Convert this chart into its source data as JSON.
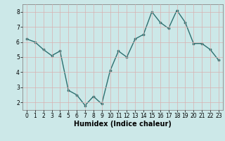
{
  "x": [
    0,
    1,
    2,
    3,
    4,
    5,
    6,
    7,
    8,
    9,
    10,
    11,
    12,
    13,
    14,
    15,
    16,
    17,
    18,
    19,
    20,
    21,
    22,
    23
  ],
  "y": [
    6.2,
    6.0,
    5.5,
    5.1,
    5.4,
    2.8,
    2.5,
    1.8,
    2.4,
    1.9,
    4.1,
    5.4,
    5.0,
    6.2,
    6.5,
    8.0,
    7.3,
    6.9,
    8.1,
    7.3,
    5.9,
    5.9,
    5.5,
    4.8
  ],
  "line_color": "#2d7070",
  "marker": "o",
  "marker_size": 2.2,
  "linewidth": 1.0,
  "xlabel": "Humidex (Indice chaleur)",
  "xlabel_fontsize": 7,
  "ylim": [
    1.5,
    8.5
  ],
  "xlim": [
    -0.5,
    23.5
  ],
  "yticks": [
    2,
    3,
    4,
    5,
    6,
    7,
    8
  ],
  "xticks": [
    0,
    1,
    2,
    3,
    4,
    5,
    6,
    7,
    8,
    9,
    10,
    11,
    12,
    13,
    14,
    15,
    16,
    17,
    18,
    19,
    20,
    21,
    22,
    23
  ],
  "tick_fontsize": 5.5,
  "bg_color": "#cce8e8",
  "grid_color": "#d8b0b0",
  "grid_alpha": 1.0,
  "spine_color": "#888888"
}
